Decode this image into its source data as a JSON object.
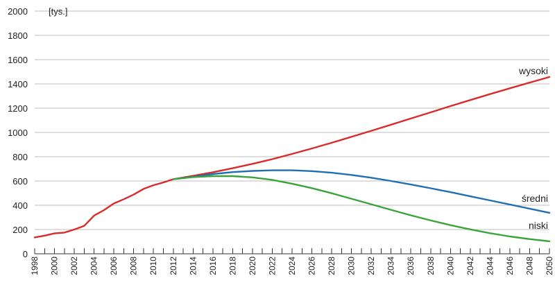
{
  "chart_data": {
    "type": "line",
    "unit_label": "[tys.]",
    "ylim": [
      0,
      2000
    ],
    "yticks": [
      0,
      200,
      400,
      600,
      800,
      1000,
      1200,
      1400,
      1600,
      1800,
      2000
    ],
    "xlim": [
      1998,
      2050
    ],
    "xticks": [
      1998,
      2000,
      2002,
      2004,
      2006,
      2008,
      2010,
      2012,
      2014,
      2016,
      2018,
      2020,
      2022,
      2024,
      2026,
      2028,
      2030,
      2032,
      2034,
      2036,
      2038,
      2040,
      2042,
      2044,
      2046,
      2048,
      2050
    ],
    "grid": "horizontal",
    "series": [
      {
        "name": "wysoki",
        "color": "#d92b2b",
        "points": [
          [
            1998,
            135
          ],
          [
            1999,
            150
          ],
          [
            2000,
            168
          ],
          [
            2001,
            175
          ],
          [
            2002,
            200
          ],
          [
            2003,
            230
          ],
          [
            2004,
            315
          ],
          [
            2005,
            360
          ],
          [
            2006,
            415
          ],
          [
            2007,
            450
          ],
          [
            2008,
            488
          ],
          [
            2009,
            535
          ],
          [
            2010,
            565
          ],
          [
            2011,
            588
          ],
          [
            2012,
            615
          ],
          [
            2014,
            643
          ],
          [
            2016,
            672
          ],
          [
            2018,
            705
          ],
          [
            2020,
            741
          ],
          [
            2022,
            780
          ],
          [
            2024,
            823
          ],
          [
            2026,
            868
          ],
          [
            2028,
            915
          ],
          [
            2030,
            964
          ],
          [
            2032,
            1014
          ],
          [
            2034,
            1064
          ],
          [
            2036,
            1115
          ],
          [
            2038,
            1166
          ],
          [
            2040,
            1217
          ],
          [
            2042,
            1267
          ],
          [
            2044,
            1316
          ],
          [
            2046,
            1364
          ],
          [
            2048,
            1411
          ],
          [
            2050,
            1457
          ]
        ]
      },
      {
        "name": "średni",
        "color": "#1f6fb2",
        "points": [
          [
            2012,
            615
          ],
          [
            2014,
            635
          ],
          [
            2016,
            657
          ],
          [
            2018,
            673
          ],
          [
            2020,
            683
          ],
          [
            2022,
            688
          ],
          [
            2024,
            688
          ],
          [
            2026,
            681
          ],
          [
            2028,
            668
          ],
          [
            2030,
            650
          ],
          [
            2032,
            627
          ],
          [
            2034,
            600
          ],
          [
            2036,
            571
          ],
          [
            2038,
            540
          ],
          [
            2040,
            508
          ],
          [
            2042,
            474
          ],
          [
            2044,
            440
          ],
          [
            2046,
            406
          ],
          [
            2048,
            372
          ],
          [
            2050,
            338
          ]
        ]
      },
      {
        "name": "niski",
        "color": "#3aa43a",
        "points": [
          [
            2012,
            615
          ],
          [
            2014,
            632
          ],
          [
            2016,
            640
          ],
          [
            2018,
            640
          ],
          [
            2020,
            630
          ],
          [
            2022,
            609
          ],
          [
            2024,
            578
          ],
          [
            2026,
            541
          ],
          [
            2028,
            499
          ],
          [
            2030,
            454
          ],
          [
            2032,
            408
          ],
          [
            2034,
            362
          ],
          [
            2036,
            317
          ],
          [
            2038,
            275
          ],
          [
            2040,
            236
          ],
          [
            2042,
            201
          ],
          [
            2044,
            170
          ],
          [
            2046,
            143
          ],
          [
            2048,
            121
          ],
          [
            2050,
            103
          ]
        ]
      }
    ]
  }
}
